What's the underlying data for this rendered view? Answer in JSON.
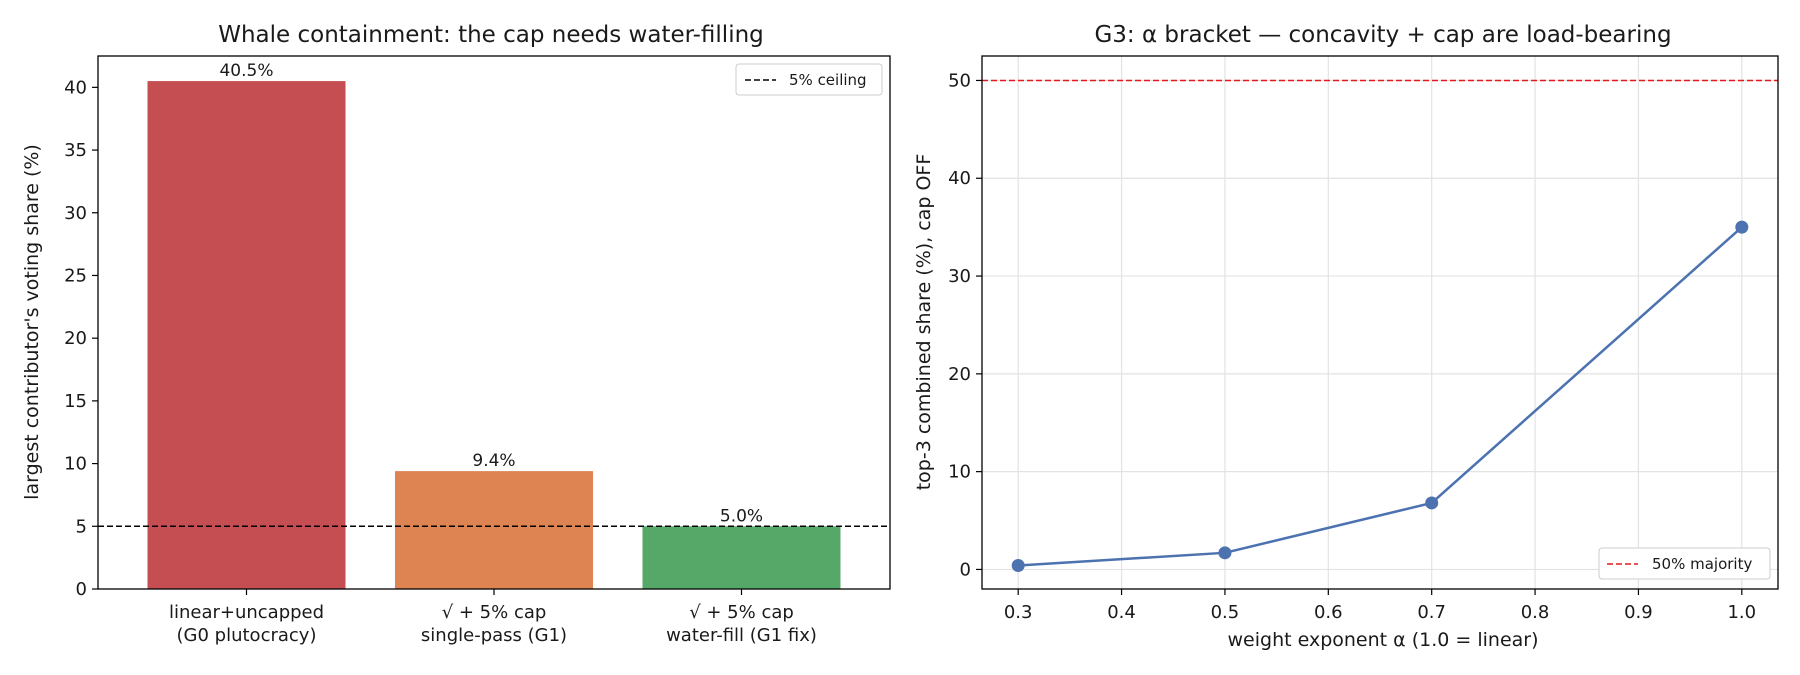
{
  "chart_data": [
    {
      "type": "bar",
      "title": "Whale containment: the cap needs water-filling",
      "xlabel": "",
      "ylabel": "largest contributor's voting share (%)",
      "categories": [
        [
          "linear+uncapped",
          "(G0 plutocracy)"
        ],
        [
          "√ + 5% cap",
          "single-pass (G1)"
        ],
        [
          "√ + 5% cap",
          "water-fill (G1 fix)"
        ]
      ],
      "values": [
        40.5,
        9.4,
        5.0
      ],
      "value_labels": [
        "40.5%",
        "9.4%",
        "5.0%"
      ],
      "colors": [
        "#c44e52",
        "#dd8452",
        "#55a868"
      ],
      "ylim": [
        0,
        42.5
      ],
      "yticks": [
        0,
        5,
        10,
        15,
        20,
        25,
        30,
        35,
        40
      ],
      "reference_line": {
        "value": 5,
        "label": "5% ceiling",
        "color": "#000000",
        "style": "dashed"
      },
      "legend": {
        "position": "top-right",
        "entries": [
          "5% ceiling"
        ]
      },
      "grid": false
    },
    {
      "type": "line",
      "title": "G3: α bracket — concavity + cap are load-bearing",
      "xlabel": "weight exponent α (1.0 = linear)",
      "ylabel": "top-3 combined share (%), cap OFF",
      "x": [
        0.3,
        0.5,
        0.7,
        1.0
      ],
      "y": [
        0.4,
        1.7,
        6.8,
        35.0
      ],
      "color": "#4c72b0",
      "xlim": [
        0.265,
        1.035
      ],
      "ylim": [
        -2.0,
        52.5
      ],
      "xticks": [
        0.3,
        0.4,
        0.5,
        0.6,
        0.7,
        0.8,
        0.9,
        1.0
      ],
      "xticklabels": [
        "0.3",
        "0.4",
        "0.5",
        "0.6",
        "0.7",
        "0.8",
        "0.9",
        "1.0"
      ],
      "yticks": [
        0,
        10,
        20,
        30,
        40,
        50
      ],
      "reference_line": {
        "value": 50,
        "label": "50% majority",
        "color": "#e31a1c",
        "style": "dashed"
      },
      "legend": {
        "position": "bottom-right",
        "entries": [
          "50% majority"
        ]
      },
      "grid": true
    }
  ]
}
